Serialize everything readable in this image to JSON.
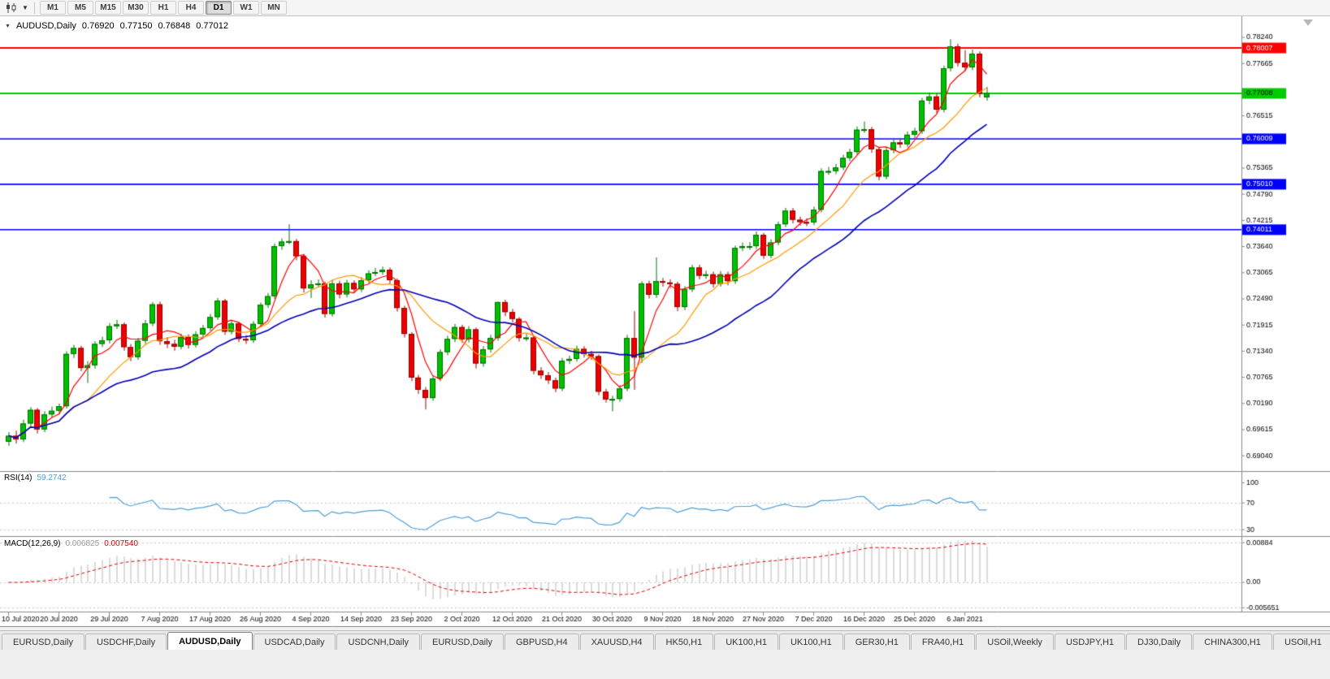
{
  "toolbar": {
    "icons": {
      "chart_type": "candlestick-chart-icon",
      "dropdown": "caret-down-icon"
    },
    "timeframes": [
      "M1",
      "M5",
      "M15",
      "M30",
      "H1",
      "H4",
      "D1",
      "W1",
      "MN"
    ],
    "active_timeframe": "D1"
  },
  "chart": {
    "title": {
      "collapse_icon": "▼",
      "symbol_period": "AUDUSD,Daily",
      "open": "0.76920",
      "high": "0.77150",
      "low": "0.76848",
      "close": "0.77012"
    },
    "price_axis": {
      "labels": [
        "0.78240",
        "0.77665",
        "0.76515",
        "0.75365",
        "0.74790",
        "0.74215",
        "0.73640",
        "0.73065",
        "0.72490",
        "0.71915",
        "0.71340",
        "0.70765",
        "0.70190",
        "0.69615",
        "0.69040"
      ]
    },
    "hlines": [
      {
        "value": 0.78007,
        "label": "0.78007",
        "color": "#ff0000",
        "text_color": "#ffffff",
        "width": 2
      },
      {
        "value": 0.77008,
        "label": "0.77008",
        "color": "#00cc00",
        "text_color": "#000000",
        "width": 2
      },
      {
        "value": 0.76009,
        "label": "0.76009",
        "color": "#0000ff",
        "text_color": "#ffffff",
        "width": 1.6
      },
      {
        "value": 0.7501,
        "label": "0.75010",
        "color": "#0000ff",
        "text_color": "#ffffff",
        "width": 1.6
      },
      {
        "value": 0.74011,
        "label": "0.74011",
        "color": "#0000ff",
        "text_color": "#ffffff",
        "width": 1.6
      }
    ]
  },
  "rsi_panel": {
    "label": "RSI(14)",
    "value": "59.2742"
  },
  "macd_panel": {
    "label": "MACD(12,26,9)",
    "value_main": "0.006825",
    "value_signal": "0.007540"
  },
  "chart_data": {
    "type": "candlestick",
    "symbol": "AUDUSD",
    "period": "Daily",
    "y_axis": {
      "top_label": "0.78240",
      "bottom_label": "0.69040",
      "label_step": 0.00575
    },
    "x_labels": [
      "10 Jul 2020",
      "20 Jul 2020",
      "29 Jul 2020",
      "7 Aug 2020",
      "17 Aug 2020",
      "26 Aug 2020",
      "4 Sep 2020",
      "14 Sep 2020",
      "23 Sep 2020",
      "2 Oct 2020",
      "12 Oct 2020",
      "21 Oct 2020",
      "30 Oct 2020",
      "9 Nov 2020",
      "18 Nov 2020",
      "27 Nov 2020",
      "7 Dec 2020",
      "16 Dec 2020",
      "25 Dec 2020",
      "6 Jan 2021"
    ],
    "x_label_indices": [
      0,
      7,
      14,
      21,
      28,
      35,
      42,
      49,
      56,
      63,
      70,
      77,
      84,
      91,
      98,
      105,
      112,
      119,
      126,
      133
    ],
    "overlays": [
      {
        "name": "ma-fast",
        "type": "sma",
        "period": 5,
        "color": "#ff0000"
      },
      {
        "name": "ma-mid",
        "type": "sma",
        "period": 12,
        "color": "#ff9900"
      },
      {
        "name": "ma-slow",
        "type": "sma",
        "period": 25,
        "color": "#0000b4"
      }
    ],
    "indicators": [
      {
        "name": "RSI",
        "params": "14",
        "value": "59.2742",
        "levels": [
          100,
          70,
          30
        ],
        "dashed_levels": [
          70,
          30
        ],
        "color": "#4f9fd8"
      },
      {
        "name": "MACD",
        "params": "12,26,9",
        "values": [
          "0.006825",
          "0.007540"
        ],
        "scale_labels": [
          "0.00884",
          "0.00",
          "-0.005651"
        ],
        "histogram_color": "#c4c4c4",
        "signal_color": "#e00000"
      }
    ],
    "candles_ohlc": [
      [
        0.6935,
        0.6956,
        0.6926,
        0.6948
      ],
      [
        0.6948,
        0.6959,
        0.6931,
        0.694
      ],
      [
        0.694,
        0.6983,
        0.6934,
        0.6975
      ],
      [
        0.6975,
        0.7011,
        0.6969,
        0.7005
      ],
      [
        0.7005,
        0.7009,
        0.6953,
        0.6962
      ],
      [
        0.6962,
        0.7002,
        0.6956,
        0.6995
      ],
      [
        0.6995,
        0.7012,
        0.6988,
        0.7003
      ],
      [
        0.7003,
        0.7019,
        0.6995,
        0.7013
      ],
      [
        0.7013,
        0.7134,
        0.7008,
        0.7128
      ],
      [
        0.7128,
        0.7148,
        0.7119,
        0.7141
      ],
      [
        0.7141,
        0.7146,
        0.709,
        0.7097
      ],
      [
        0.7097,
        0.7112,
        0.7064,
        0.7103
      ],
      [
        0.7103,
        0.7156,
        0.7096,
        0.715
      ],
      [
        0.715,
        0.7166,
        0.7143,
        0.7158
      ],
      [
        0.7158,
        0.7196,
        0.7151,
        0.7189
      ],
      [
        0.7189,
        0.7203,
        0.7183,
        0.7193
      ],
      [
        0.7193,
        0.7197,
        0.7135,
        0.7143
      ],
      [
        0.7143,
        0.715,
        0.7112,
        0.7121
      ],
      [
        0.7121,
        0.7163,
        0.7115,
        0.7157
      ],
      [
        0.7157,
        0.7203,
        0.715,
        0.7195
      ],
      [
        0.7195,
        0.7242,
        0.7189,
        0.7237
      ],
      [
        0.7237,
        0.7243,
        0.7148,
        0.7156
      ],
      [
        0.7156,
        0.7165,
        0.7141,
        0.715
      ],
      [
        0.715,
        0.7159,
        0.7135,
        0.7144
      ],
      [
        0.7144,
        0.7172,
        0.7138,
        0.7165
      ],
      [
        0.7165,
        0.7171,
        0.714,
        0.7148
      ],
      [
        0.7148,
        0.7178,
        0.7142,
        0.7171
      ],
      [
        0.7171,
        0.7192,
        0.7164,
        0.7185
      ],
      [
        0.7185,
        0.7216,
        0.7179,
        0.7209
      ],
      [
        0.7209,
        0.7251,
        0.7203,
        0.7245
      ],
      [
        0.7245,
        0.7249,
        0.717,
        0.7177
      ],
      [
        0.7177,
        0.7202,
        0.7171,
        0.7195
      ],
      [
        0.7195,
        0.7199,
        0.7154,
        0.7161
      ],
      [
        0.7161,
        0.7169,
        0.715,
        0.7158
      ],
      [
        0.7158,
        0.72,
        0.7152,
        0.7194
      ],
      [
        0.7194,
        0.7241,
        0.7188,
        0.7236
      ],
      [
        0.7236,
        0.7262,
        0.7229,
        0.7255
      ],
      [
        0.7255,
        0.7371,
        0.7249,
        0.7365
      ],
      [
        0.7365,
        0.7382,
        0.7357,
        0.7375
      ],
      [
        0.7375,
        0.7413,
        0.7369,
        0.7376
      ],
      [
        0.7376,
        0.7381,
        0.7334,
        0.7343
      ],
      [
        0.7343,
        0.7348,
        0.7263,
        0.7272
      ],
      [
        0.7272,
        0.729,
        0.7251,
        0.7281
      ],
      [
        0.7281,
        0.7292,
        0.7274,
        0.7283
      ],
      [
        0.7283,
        0.7287,
        0.7208,
        0.7216
      ],
      [
        0.7216,
        0.729,
        0.721,
        0.7283
      ],
      [
        0.7283,
        0.7289,
        0.725,
        0.7259
      ],
      [
        0.7259,
        0.7291,
        0.7252,
        0.7284
      ],
      [
        0.7284,
        0.729,
        0.7262,
        0.727
      ],
      [
        0.727,
        0.7297,
        0.7264,
        0.729
      ],
      [
        0.729,
        0.7312,
        0.7284,
        0.7305
      ],
      [
        0.7305,
        0.7317,
        0.7299,
        0.7308
      ],
      [
        0.7308,
        0.732,
        0.7302,
        0.7313
      ],
      [
        0.7313,
        0.7318,
        0.7282,
        0.729
      ],
      [
        0.729,
        0.7294,
        0.7221,
        0.7229
      ],
      [
        0.7229,
        0.7234,
        0.7164,
        0.7172
      ],
      [
        0.7172,
        0.7176,
        0.7068,
        0.7076
      ],
      [
        0.7076,
        0.7082,
        0.704,
        0.7049
      ],
      [
        0.7049,
        0.7055,
        0.7006,
        0.7031
      ],
      [
        0.7031,
        0.7081,
        0.7025,
        0.7074
      ],
      [
        0.7074,
        0.7138,
        0.7068,
        0.7132
      ],
      [
        0.7132,
        0.7168,
        0.7125,
        0.7161
      ],
      [
        0.7161,
        0.7194,
        0.7154,
        0.7187
      ],
      [
        0.7187,
        0.7192,
        0.7152,
        0.716
      ],
      [
        0.716,
        0.7189,
        0.7153,
        0.7182
      ],
      [
        0.7182,
        0.7186,
        0.7096,
        0.7107
      ],
      [
        0.7107,
        0.7145,
        0.71,
        0.7138
      ],
      [
        0.7138,
        0.717,
        0.7131,
        0.7163
      ],
      [
        0.7163,
        0.7243,
        0.7157,
        0.7242
      ],
      [
        0.7242,
        0.7247,
        0.7211,
        0.722
      ],
      [
        0.722,
        0.7227,
        0.7197,
        0.7205
      ],
      [
        0.7205,
        0.7209,
        0.7155,
        0.7163
      ],
      [
        0.7163,
        0.7172,
        0.7156,
        0.7164
      ],
      [
        0.7164,
        0.7168,
        0.7083,
        0.7091
      ],
      [
        0.7091,
        0.7099,
        0.7073,
        0.7081
      ],
      [
        0.7081,
        0.7088,
        0.7062,
        0.707
      ],
      [
        0.707,
        0.7076,
        0.7044,
        0.7052
      ],
      [
        0.7052,
        0.7119,
        0.7046,
        0.7113
      ],
      [
        0.7113,
        0.7124,
        0.7106,
        0.7117
      ],
      [
        0.7117,
        0.7146,
        0.7111,
        0.7139
      ],
      [
        0.7139,
        0.7145,
        0.712,
        0.7128
      ],
      [
        0.7128,
        0.7135,
        0.7115,
        0.7123
      ],
      [
        0.7123,
        0.7127,
        0.7037,
        0.7045
      ],
      [
        0.7045,
        0.7051,
        0.7021,
        0.7028
      ],
      [
        0.7028,
        0.7036,
        0.7002,
        0.7029
      ],
      [
        0.7029,
        0.7059,
        0.7023,
        0.7052
      ],
      [
        0.7052,
        0.717,
        0.7046,
        0.7163
      ],
      [
        0.7163,
        0.7222,
        0.7049,
        0.712
      ],
      [
        0.712,
        0.7288,
        0.7108,
        0.7283
      ],
      [
        0.7283,
        0.7289,
        0.725,
        0.7258
      ],
      [
        0.7258,
        0.734,
        0.7251,
        0.7288
      ],
      [
        0.7288,
        0.7295,
        0.7276,
        0.7285
      ],
      [
        0.7285,
        0.7292,
        0.7273,
        0.7282
      ],
      [
        0.7282,
        0.7287,
        0.7222,
        0.7231
      ],
      [
        0.7231,
        0.7277,
        0.7224,
        0.727
      ],
      [
        0.727,
        0.7324,
        0.7264,
        0.7318
      ],
      [
        0.7318,
        0.7324,
        0.7292,
        0.73
      ],
      [
        0.73,
        0.7311,
        0.7293,
        0.7303
      ],
      [
        0.7303,
        0.7309,
        0.7274,
        0.7282
      ],
      [
        0.7282,
        0.731,
        0.7276,
        0.7303
      ],
      [
        0.7303,
        0.7309,
        0.7279,
        0.7288
      ],
      [
        0.7288,
        0.7366,
        0.7282,
        0.7361
      ],
      [
        0.7361,
        0.7373,
        0.7354,
        0.7365
      ],
      [
        0.7365,
        0.7374,
        0.7357,
        0.7365
      ],
      [
        0.7365,
        0.7397,
        0.7359,
        0.739
      ],
      [
        0.739,
        0.7394,
        0.7337,
        0.7344
      ],
      [
        0.7344,
        0.738,
        0.7338,
        0.7373
      ],
      [
        0.7373,
        0.7419,
        0.7367,
        0.7413
      ],
      [
        0.7413,
        0.7449,
        0.7407,
        0.7443
      ],
      [
        0.7443,
        0.7449,
        0.7415,
        0.7423
      ],
      [
        0.7423,
        0.743,
        0.741,
        0.7418
      ],
      [
        0.7418,
        0.7426,
        0.7409,
        0.7417
      ],
      [
        0.7417,
        0.7452,
        0.7411,
        0.7445
      ],
      [
        0.7445,
        0.7536,
        0.7439,
        0.753
      ],
      [
        0.753,
        0.7539,
        0.7522,
        0.753
      ],
      [
        0.753,
        0.7546,
        0.7523,
        0.7538
      ],
      [
        0.7538,
        0.7566,
        0.7532,
        0.7559
      ],
      [
        0.7559,
        0.7579,
        0.7552,
        0.7572
      ],
      [
        0.7572,
        0.7628,
        0.7566,
        0.7621
      ],
      [
        0.7621,
        0.7639,
        0.7614,
        0.7622
      ],
      [
        0.7622,
        0.7627,
        0.757,
        0.7578
      ],
      [
        0.7578,
        0.7583,
        0.751,
        0.7518
      ],
      [
        0.7518,
        0.7583,
        0.7512,
        0.7576
      ],
      [
        0.7576,
        0.76,
        0.7569,
        0.7593
      ],
      [
        0.7593,
        0.76,
        0.7581,
        0.7589
      ],
      [
        0.7589,
        0.7617,
        0.7583,
        0.761
      ],
      [
        0.761,
        0.7625,
        0.7603,
        0.7618
      ],
      [
        0.7618,
        0.7691,
        0.7612,
        0.7685
      ],
      [
        0.7685,
        0.7702,
        0.7677,
        0.7694
      ],
      [
        0.7694,
        0.77,
        0.7657,
        0.7665
      ],
      [
        0.7665,
        0.7762,
        0.7659,
        0.7756
      ],
      [
        0.7756,
        0.782,
        0.7749,
        0.7804
      ],
      [
        0.7804,
        0.781,
        0.776,
        0.7768
      ],
      [
        0.7768,
        0.7796,
        0.775,
        0.7758
      ],
      [
        0.7758,
        0.7797,
        0.7752,
        0.7788
      ],
      [
        0.7788,
        0.7793,
        0.7692,
        0.77
      ],
      [
        0.7692,
        0.7715,
        0.76848,
        0.77012
      ]
    ]
  },
  "tabs": {
    "items": [
      "EURUSD,Daily",
      "USDCHF,Daily",
      "AUDUSD,Daily",
      "USDCAD,Daily",
      "USDCNH,Daily",
      "EURUSD,Daily",
      "GBPUSD,H4",
      "XAUUSD,H4",
      "HK50,H1",
      "UK100,H1",
      "UK100,H1",
      "GER30,H1",
      "FRA40,H1",
      "USOil,Weekly",
      "USDJPY,H1",
      "DJ30,Daily",
      "CHINA300,H1",
      "USOil,H1"
    ],
    "active_index": 2
  }
}
